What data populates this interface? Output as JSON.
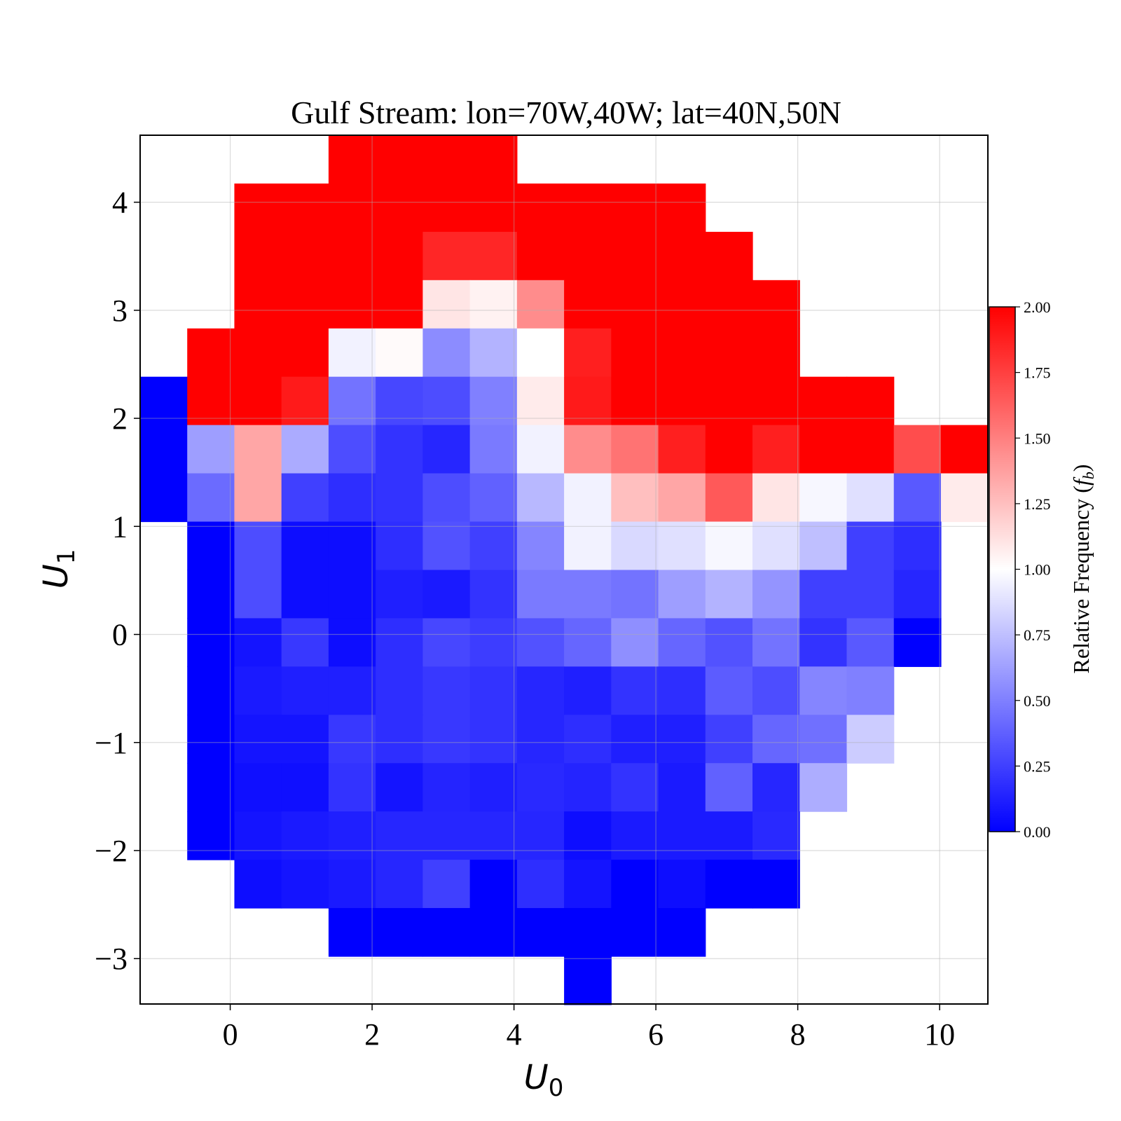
{
  "chart_data": {
    "type": "heatmap",
    "title": "Gulf Stream: lon=70W,40W; lat=40N,50N",
    "xlabel": "U",
    "xlabel_sub": "0",
    "ylabel": "U",
    "ylabel_sub": "1",
    "xlim": [
      -1.27,
      10.68
    ],
    "ylim": [
      -3.42,
      4.62
    ],
    "xticks": [
      0,
      2,
      4,
      6,
      8,
      10
    ],
    "xtick_labels": [
      "0",
      "2",
      "4",
      "6",
      "8",
      "10"
    ],
    "yticks": [
      -3,
      -2,
      -1,
      0,
      1,
      2,
      3,
      4
    ],
    "ytick_labels": [
      "−3",
      "−2",
      "−1",
      "0",
      "1",
      "2",
      "3",
      "4"
    ],
    "grid": true,
    "colormap": "bwr",
    "colors": {
      "low": "#0000ff",
      "mid": "#ffffff",
      "high": "#ff0000"
    },
    "bins": {
      "x_start": -1.27,
      "x_width": 0.664,
      "x_count": 18,
      "y_top": 4.62,
      "y_height": 0.447,
      "y_count": 18
    },
    "grid_values": [
      [
        null,
        null,
        null,
        null,
        2,
        2,
        2,
        2,
        null,
        null,
        null,
        null,
        null,
        null,
        null,
        null,
        null,
        null
      ],
      [
        null,
        null,
        2,
        2,
        2,
        2,
        2,
        2,
        2,
        2,
        2,
        2,
        null,
        null,
        null,
        null,
        null,
        null
      ],
      [
        null,
        null,
        2,
        2,
        2,
        2,
        1.85,
        1.85,
        2,
        2,
        2,
        2,
        2,
        null,
        null,
        null,
        null,
        null
      ],
      [
        null,
        null,
        2,
        2,
        2,
        2,
        1.1,
        1.05,
        1.45,
        2,
        2,
        2,
        2,
        2,
        null,
        null,
        null,
        null
      ],
      [
        null,
        2,
        2,
        2,
        0.95,
        1.02,
        0.55,
        0.7,
        1,
        1.88,
        2,
        2,
        2,
        2,
        null,
        null,
        null,
        null
      ],
      [
        0,
        2,
        2,
        1.9,
        0.45,
        0.28,
        0.3,
        0.5,
        1.08,
        1.9,
        2,
        2,
        2,
        2,
        2,
        2,
        null,
        null
      ],
      [
        0,
        0.62,
        1.35,
        0.67,
        0.3,
        0.2,
        0.15,
        0.48,
        0.95,
        1.45,
        1.55,
        1.88,
        2,
        1.88,
        2,
        2,
        1.7,
        2
      ],
      [
        0,
        0.42,
        1.35,
        0.25,
        0.18,
        0.2,
        0.3,
        0.38,
        0.72,
        0.95,
        1.25,
        1.35,
        1.65,
        1.1,
        0.97,
        0.88,
        0.35,
        1.08
      ],
      [
        null,
        0,
        0.3,
        0.05,
        0.05,
        0.18,
        0.32,
        0.25,
        0.52,
        0.95,
        0.85,
        0.88,
        0.97,
        0.88,
        0.75,
        0.25,
        0.18,
        null
      ],
      [
        null,
        0,
        0.3,
        0.05,
        0.05,
        0.12,
        0.1,
        0.2,
        0.48,
        0.48,
        0.45,
        0.62,
        0.7,
        0.58,
        0.25,
        0.25,
        0.15,
        null
      ],
      [
        null,
        0,
        0.08,
        0.22,
        0.05,
        0.18,
        0.28,
        0.24,
        0.32,
        0.4,
        0.56,
        0.4,
        0.32,
        0.45,
        0.2,
        0.35,
        0,
        null
      ],
      [
        null,
        0,
        0.1,
        0.12,
        0.12,
        0.18,
        0.22,
        0.2,
        0.15,
        0.12,
        0.2,
        0.18,
        0.36,
        0.3,
        0.52,
        0.5,
        null,
        null
      ],
      [
        null,
        0,
        0.08,
        0.08,
        0.22,
        0.18,
        0.22,
        0.2,
        0.15,
        0.18,
        0.12,
        0.12,
        0.25,
        0.4,
        0.44,
        0.8,
        null,
        null
      ],
      [
        null,
        0,
        0.06,
        0.06,
        0.2,
        0.08,
        0.14,
        0.12,
        0.16,
        0.14,
        0.2,
        0.1,
        0.38,
        0.15,
        0.68,
        null,
        null,
        null
      ],
      [
        null,
        0,
        0.08,
        0.1,
        0.12,
        0.15,
        0.15,
        0.15,
        0.15,
        0.05,
        0.1,
        0.1,
        0.1,
        0.16,
        null,
        null,
        null,
        null
      ],
      [
        null,
        null,
        0.05,
        0.08,
        0.1,
        0.15,
        0.25,
        0,
        0.18,
        0.08,
        0,
        0.05,
        0,
        0,
        null,
        null,
        null,
        null
      ],
      [
        null,
        null,
        null,
        null,
        0,
        0,
        0,
        0,
        0,
        0,
        0,
        0,
        null,
        null,
        null,
        null,
        null,
        null
      ],
      [
        null,
        null,
        null,
        null,
        null,
        null,
        null,
        null,
        null,
        0,
        null,
        null,
        null,
        null,
        null,
        null,
        null,
        null
      ]
    ],
    "colorbar": {
      "label": "Relative Frequency (",
      "label_italic": "f",
      "label_sub": "b",
      "label_close": ")",
      "vmin": 0,
      "vmax": 2,
      "ticks": [
        0,
        0.25,
        0.5,
        0.75,
        1,
        1.25,
        1.5,
        1.75,
        2
      ],
      "tick_labels": [
        "0.00",
        "0.25",
        "0.50",
        "0.75",
        "1.00",
        "1.25",
        "1.50",
        "1.75",
        "2.00"
      ]
    }
  }
}
